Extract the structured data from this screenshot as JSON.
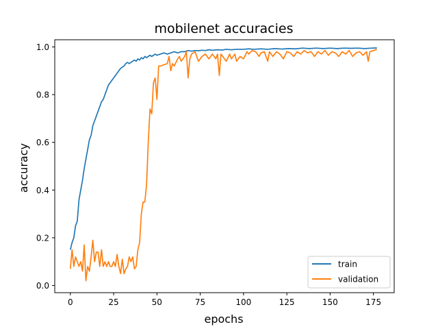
{
  "chart_data": {
    "type": "line",
    "title": "mobilenet accuracies",
    "xlabel": "epochs",
    "ylabel": "accuracy",
    "xlim": [
      -9,
      187
    ],
    "ylim": [
      -0.03,
      1.03
    ],
    "x_ticks": [
      0,
      25,
      50,
      75,
      100,
      125,
      150,
      175
    ],
    "y_ticks": [
      0.0,
      0.2,
      0.4,
      0.6,
      0.8,
      1.0
    ],
    "x_tick_labels": [
      "0",
      "25",
      "50",
      "75",
      "100",
      "125",
      "150",
      "175"
    ],
    "y_tick_labels": [
      "0.0",
      "0.2",
      "0.4",
      "0.6",
      "0.8",
      "1.0"
    ],
    "grid": false,
    "legend_position": "lower-right",
    "series": [
      {
        "name": "train",
        "color": "#1f77b4",
        "points": [
          [
            0,
            0.15
          ],
          [
            1,
            0.18
          ],
          [
            2,
            0.2
          ],
          [
            3,
            0.25
          ],
          [
            4,
            0.27
          ],
          [
            5,
            0.36
          ],
          [
            6,
            0.4
          ],
          [
            7,
            0.44
          ],
          [
            8,
            0.49
          ],
          [
            9,
            0.53
          ],
          [
            10,
            0.57
          ],
          [
            11,
            0.61
          ],
          [
            12,
            0.63
          ],
          [
            13,
            0.67
          ],
          [
            14,
            0.69
          ],
          [
            15,
            0.71
          ],
          [
            16,
            0.73
          ],
          [
            17,
            0.75
          ],
          [
            18,
            0.77
          ],
          [
            19,
            0.78
          ],
          [
            20,
            0.8
          ],
          [
            21,
            0.82
          ],
          [
            22,
            0.84
          ],
          [
            23,
            0.85
          ],
          [
            24,
            0.86
          ],
          [
            25,
            0.87
          ],
          [
            26,
            0.88
          ],
          [
            27,
            0.89
          ],
          [
            28,
            0.9
          ],
          [
            29,
            0.91
          ],
          [
            30,
            0.915
          ],
          [
            31,
            0.92
          ],
          [
            32,
            0.93
          ],
          [
            33,
            0.935
          ],
          [
            34,
            0.93
          ],
          [
            35,
            0.935
          ],
          [
            36,
            0.94
          ],
          [
            37,
            0.945
          ],
          [
            38,
            0.94
          ],
          [
            39,
            0.95
          ],
          [
            40,
            0.945
          ],
          [
            41,
            0.955
          ],
          [
            42,
            0.95
          ],
          [
            43,
            0.96
          ],
          [
            44,
            0.955
          ],
          [
            45,
            0.96
          ],
          [
            46,
            0.965
          ],
          [
            47,
            0.96
          ],
          [
            48,
            0.965
          ],
          [
            49,
            0.97
          ],
          [
            50,
            0.965
          ],
          [
            52,
            0.97
          ],
          [
            54,
            0.975
          ],
          [
            56,
            0.97
          ],
          [
            58,
            0.975
          ],
          [
            60,
            0.98
          ],
          [
            62,
            0.975
          ],
          [
            64,
            0.98
          ],
          [
            66,
            0.98
          ],
          [
            68,
            0.985
          ],
          [
            70,
            0.982
          ],
          [
            72,
            0.985
          ],
          [
            74,
            0.984
          ],
          [
            76,
            0.986
          ],
          [
            78,
            0.985
          ],
          [
            80,
            0.988
          ],
          [
            82,
            0.986
          ],
          [
            85,
            0.988
          ],
          [
            88,
            0.987
          ],
          [
            90,
            0.99
          ],
          [
            93,
            0.988
          ],
          [
            96,
            0.99
          ],
          [
            100,
            0.99
          ],
          [
            103,
            0.992
          ],
          [
            106,
            0.99
          ],
          [
            110,
            0.992
          ],
          [
            114,
            0.99
          ],
          [
            118,
            0.993
          ],
          [
            122,
            0.991
          ],
          [
            126,
            0.993
          ],
          [
            130,
            0.992
          ],
          [
            134,
            0.995
          ],
          [
            138,
            0.993
          ],
          [
            142,
            0.995
          ],
          [
            146,
            0.993
          ],
          [
            150,
            0.995
          ],
          [
            154,
            0.993
          ],
          [
            158,
            0.995
          ],
          [
            162,
            0.994
          ],
          [
            166,
            0.995
          ],
          [
            170,
            0.993
          ],
          [
            174,
            0.995
          ],
          [
            177,
            0.996
          ]
        ]
      },
      {
        "name": "validation",
        "color": "#ff7f0e",
        "points": [
          [
            0,
            0.07
          ],
          [
            1,
            0.15
          ],
          [
            2,
            0.08
          ],
          [
            3,
            0.12
          ],
          [
            4,
            0.1
          ],
          [
            5,
            0.08
          ],
          [
            6,
            0.1
          ],
          [
            7,
            0.06
          ],
          [
            8,
            0.17
          ],
          [
            9,
            0.02
          ],
          [
            10,
            0.08
          ],
          [
            11,
            0.06
          ],
          [
            12,
            0.12
          ],
          [
            13,
            0.19
          ],
          [
            14,
            0.1
          ],
          [
            15,
            0.14
          ],
          [
            16,
            0.14
          ],
          [
            17,
            0.08
          ],
          [
            18,
            0.15
          ],
          [
            19,
            0.08
          ],
          [
            20,
            0.1
          ],
          [
            21,
            0.08
          ],
          [
            22,
            0.1
          ],
          [
            23,
            0.08
          ],
          [
            24,
            0.08
          ],
          [
            25,
            0.1
          ],
          [
            26,
            0.08
          ],
          [
            27,
            0.13
          ],
          [
            28,
            0.08
          ],
          [
            29,
            0.05
          ],
          [
            30,
            0.11
          ],
          [
            31,
            0.05
          ],
          [
            32,
            0.07
          ],
          [
            33,
            0.08
          ],
          [
            34,
            0.12
          ],
          [
            35,
            0.1
          ],
          [
            36,
            0.12
          ],
          [
            37,
            0.07
          ],
          [
            38,
            0.08
          ],
          [
            39,
            0.15
          ],
          [
            40,
            0.18
          ],
          [
            41,
            0.3
          ],
          [
            42,
            0.35
          ],
          [
            43,
            0.35
          ],
          [
            44,
            0.42
          ],
          [
            45,
            0.6
          ],
          [
            46,
            0.74
          ],
          [
            47,
            0.72
          ],
          [
            48,
            0.85
          ],
          [
            49,
            0.87
          ],
          [
            50,
            0.78
          ],
          [
            51,
            0.92
          ],
          [
            52,
            0.92
          ],
          [
            54,
            0.925
          ],
          [
            56,
            0.93
          ],
          [
            57,
            0.96
          ],
          [
            58,
            0.9
          ],
          [
            59,
            0.93
          ],
          [
            60,
            0.92
          ],
          [
            62,
            0.95
          ],
          [
            63,
            0.96
          ],
          [
            64,
            0.94
          ],
          [
            66,
            0.96
          ],
          [
            67,
            0.98
          ],
          [
            68,
            0.87
          ],
          [
            69,
            0.95
          ],
          [
            70,
            0.97
          ],
          [
            72,
            0.98
          ],
          [
            74,
            0.94
          ],
          [
            76,
            0.96
          ],
          [
            78,
            0.97
          ],
          [
            80,
            0.95
          ],
          [
            82,
            0.97
          ],
          [
            84,
            0.95
          ],
          [
            85,
            0.97
          ],
          [
            86,
            0.88
          ],
          [
            87,
            0.97
          ],
          [
            88,
            0.96
          ],
          [
            90,
            0.94
          ],
          [
            92,
            0.97
          ],
          [
            93,
            0.95
          ],
          [
            95,
            0.97
          ],
          [
            96,
            0.94
          ],
          [
            98,
            0.96
          ],
          [
            100,
            0.95
          ],
          [
            102,
            0.98
          ],
          [
            103,
            0.97
          ],
          [
            105,
            0.985
          ],
          [
            107,
            0.98
          ],
          [
            109,
            0.96
          ],
          [
            110,
            0.975
          ],
          [
            112,
            0.98
          ],
          [
            114,
            0.94
          ],
          [
            115,
            0.98
          ],
          [
            117,
            0.96
          ],
          [
            119,
            0.98
          ],
          [
            121,
            0.97
          ],
          [
            123,
            0.95
          ],
          [
            125,
            0.98
          ],
          [
            127,
            0.975
          ],
          [
            129,
            0.96
          ],
          [
            131,
            0.98
          ],
          [
            133,
            0.97
          ],
          [
            135,
            0.985
          ],
          [
            137,
            0.975
          ],
          [
            139,
            0.98
          ],
          [
            141,
            0.96
          ],
          [
            143,
            0.98
          ],
          [
            145,
            0.97
          ],
          [
            147,
            0.985
          ],
          [
            149,
            0.965
          ],
          [
            151,
            0.98
          ],
          [
            153,
            0.975
          ],
          [
            155,
            0.96
          ],
          [
            157,
            0.98
          ],
          [
            159,
            0.97
          ],
          [
            161,
            0.985
          ],
          [
            163,
            0.96
          ],
          [
            165,
            0.975
          ],
          [
            167,
            0.98
          ],
          [
            169,
            0.965
          ],
          [
            171,
            0.98
          ],
          [
            172,
            0.94
          ],
          [
            173,
            0.98
          ],
          [
            175,
            0.985
          ],
          [
            177,
            0.99
          ]
        ]
      }
    ]
  }
}
